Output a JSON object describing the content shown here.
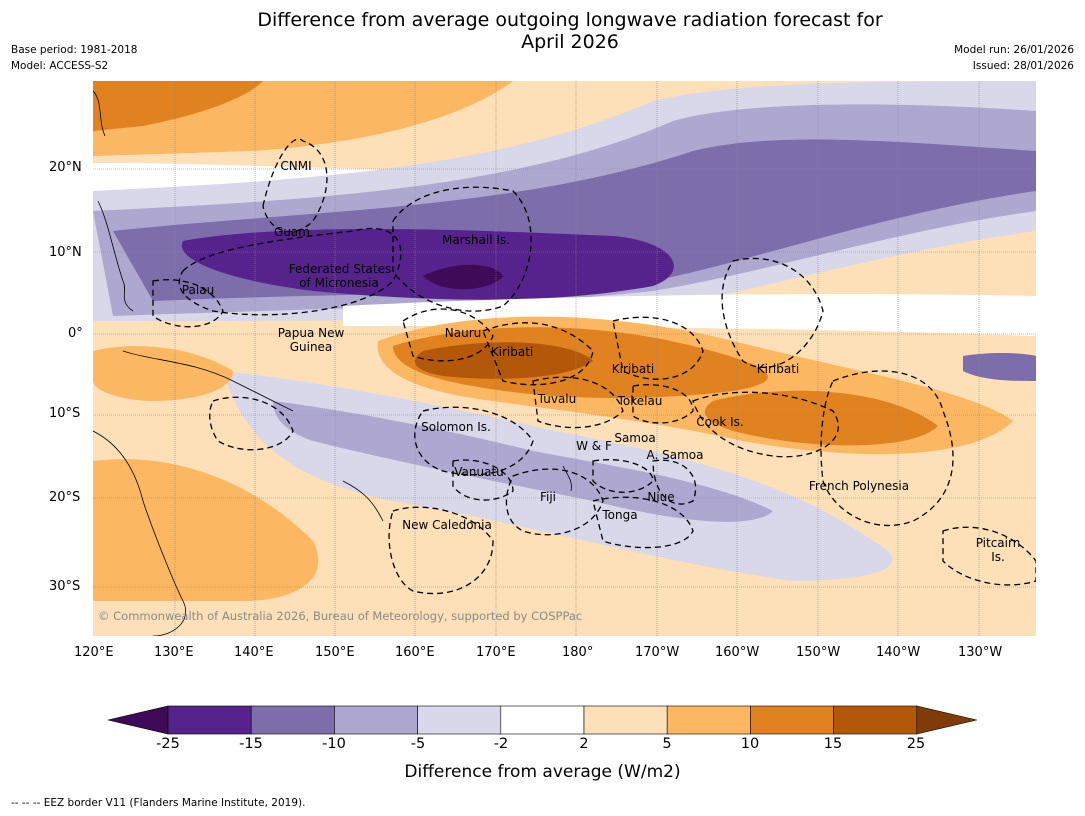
{
  "header": {
    "title_line1": "Difference from average outgoing longwave radiation forecast for",
    "title_line2": "April 2026",
    "base_period": "Base period: 1981-2018",
    "model": "Model: ACCESS-S2",
    "model_run": "Model run: 26/01/2026",
    "issued": "Issued: 28/01/2026"
  },
  "map": {
    "lat_labels": [
      "20°N",
      "10°N",
      "0°",
      "10°S",
      "20°S",
      "30°S"
    ],
    "lon_labels": [
      "120°E",
      "130°E",
      "140°E",
      "150°E",
      "160°E",
      "170°E",
      "180°",
      "170°W",
      "160°W",
      "150°W",
      "140°W",
      "130°W"
    ],
    "places": {
      "cnmi": "CNMI",
      "guam": "Guam",
      "marshall": "Marshall Is.",
      "fsm_line1": "Federated States",
      "fsm_line2": "of Micronesia",
      "palau": "Palau",
      "nauru": "Nauru",
      "png_line1": "Papua New",
      "png_line2": "Guinea",
      "kiribati_west": "Kiribati",
      "kiribati_central": "Kiribati",
      "kiribati_east": "Kiribati",
      "tuvalu": "Tuvalu",
      "tokelau": "Tokelau",
      "cook": "Cook Is.",
      "solomon": "Solomon Is.",
      "wf": "W & F",
      "samoa": "Samoa",
      "asamoa": "A. Samoa",
      "vanuatu": "Vanuatu",
      "fiji": "Fiji",
      "niue": "Niue",
      "tonga": "Tonga",
      "french_polynesia": "French Polynesia",
      "new_caledonia": "New Caledonia",
      "pitcairn_line1": "Pitcairn",
      "pitcairn_line2": "Is."
    },
    "copyright": "© Commonwealth of Australia 2026, Bureau of Meteorology, supported by COSPPac"
  },
  "colorbar": {
    "ticks": [
      "-25",
      "-15",
      "-10",
      "-5",
      "-2",
      "2",
      "5",
      "10",
      "15",
      "25"
    ],
    "colors": [
      "#3f0a57",
      "#56228c",
      "#7d6dab",
      "#aea8d1",
      "#d9d8ea",
      "#ffffff",
      "#fde0b7",
      "#fbb762",
      "#e0821f",
      "#b35808",
      "#7f3b08"
    ],
    "title": "Difference from average (W/m2)"
  },
  "footer": {
    "legend": "--  --  -- EEZ border V11 (Flanders Marine Institute, 2019)."
  }
}
